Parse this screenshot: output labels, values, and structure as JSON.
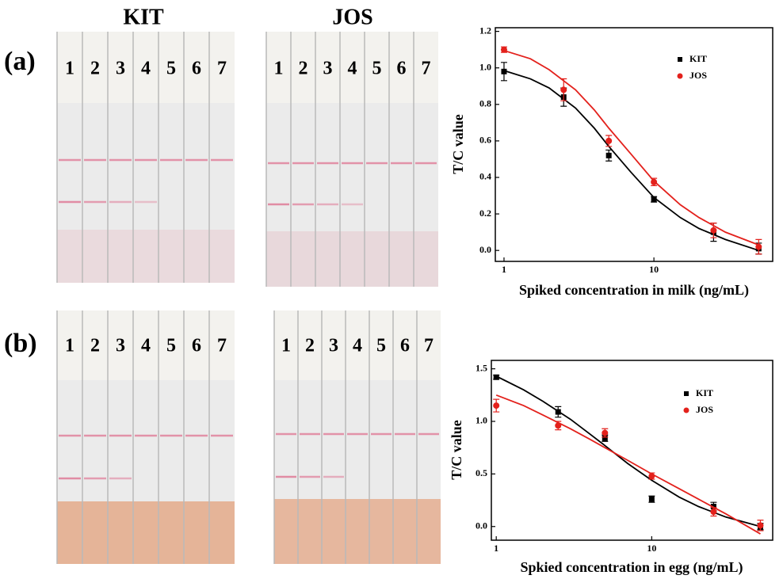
{
  "panel_labels": [
    "(a)",
    "(b)"
  ],
  "photo_titles": [
    "KIT",
    "JOS"
  ],
  "strip_labels": [
    "1",
    "2",
    "3",
    "4",
    "5",
    "6",
    "7"
  ],
  "chart_data": [
    {
      "type": "scatter",
      "xscale": "log",
      "y_label": "T/C value",
      "x_label": "Spiked concentration in milk (ng/mL)",
      "x": [
        1,
        2.5,
        5,
        10,
        25,
        50
      ],
      "fit_x": [
        1,
        1.5,
        2,
        3,
        4,
        5,
        7,
        10,
        15,
        20,
        30,
        50
      ],
      "series": [
        {
          "name": "KIT",
          "color": "#000000",
          "marker": "square",
          "values": [
            0.98,
            0.84,
            0.52,
            0.28,
            0.1,
            0.01
          ],
          "errors": [
            0.05,
            0.05,
            0.03,
            0.015,
            0.05,
            0.03
          ],
          "fit_values": [
            0.985,
            0.94,
            0.89,
            0.78,
            0.67,
            0.57,
            0.43,
            0.29,
            0.18,
            0.12,
            0.06,
            0.0
          ]
        },
        {
          "name": "JOS",
          "color": "#e3211c",
          "marker": "circle",
          "values": [
            1.1,
            0.88,
            0.6,
            0.375,
            0.11,
            0.02
          ],
          "errors": [
            0.015,
            0.06,
            0.03,
            0.02,
            0.04,
            0.04
          ],
          "fit_values": [
            1.095,
            1.05,
            0.99,
            0.88,
            0.77,
            0.67,
            0.53,
            0.38,
            0.25,
            0.18,
            0.1,
            0.03
          ]
        }
      ],
      "xlim": [
        0.875,
        62
      ],
      "ylim": [
        -0.06,
        1.22
      ],
      "xticks": [
        1,
        10
      ],
      "yticks": [
        {
          "value": 0,
          "label": "0.0"
        },
        0.2,
        0.4,
        0.6,
        0.8,
        {
          "value": 1,
          "label": "1.0"
        },
        1.2
      ],
      "legend": "upper right"
    },
    {
      "type": "scatter",
      "xscale": "log",
      "y_label": "T/C value",
      "x_label": "Spkied concentration in egg (ng/mL)",
      "x": [
        1,
        2.5,
        5,
        10,
        25,
        50
      ],
      "fit_x": [
        1,
        1.5,
        2,
        3,
        4,
        5,
        7,
        10,
        15,
        20,
        30,
        50
      ],
      "series": [
        {
          "name": "KIT",
          "color": "#000000",
          "marker": "square",
          "values": [
            1.42,
            1.09,
            0.84,
            0.26,
            0.19,
            0.0
          ],
          "errors": [
            0.02,
            0.05,
            0.03,
            0.03,
            0.04,
            0.03
          ],
          "fit_values": [
            1.43,
            1.3,
            1.19,
            1.02,
            0.88,
            0.77,
            0.6,
            0.44,
            0.28,
            0.19,
            0.09,
            0.0
          ]
        },
        {
          "name": "JOS",
          "color": "#e3211c",
          "marker": "circle",
          "values": [
            1.15,
            0.96,
            0.89,
            0.48,
            0.14,
            0.01
          ],
          "errors": [
            0.06,
            0.04,
            0.04,
            0.03,
            0.04,
            0.05
          ],
          "fit_values": [
            1.25,
            1.15,
            1.06,
            0.93,
            0.83,
            0.75,
            0.63,
            0.5,
            0.36,
            0.26,
            0.12,
            -0.07
          ]
        }
      ],
      "xlim": [
        0.93,
        60
      ],
      "ylim": [
        -0.13,
        1.58
      ],
      "xticks": [
        1,
        10
      ],
      "yticks": [
        {
          "value": 0,
          "label": "0.0"
        },
        0.5,
        {
          "value": 1,
          "label": "1.0"
        },
        1.5
      ],
      "legend": "upper right"
    }
  ]
}
